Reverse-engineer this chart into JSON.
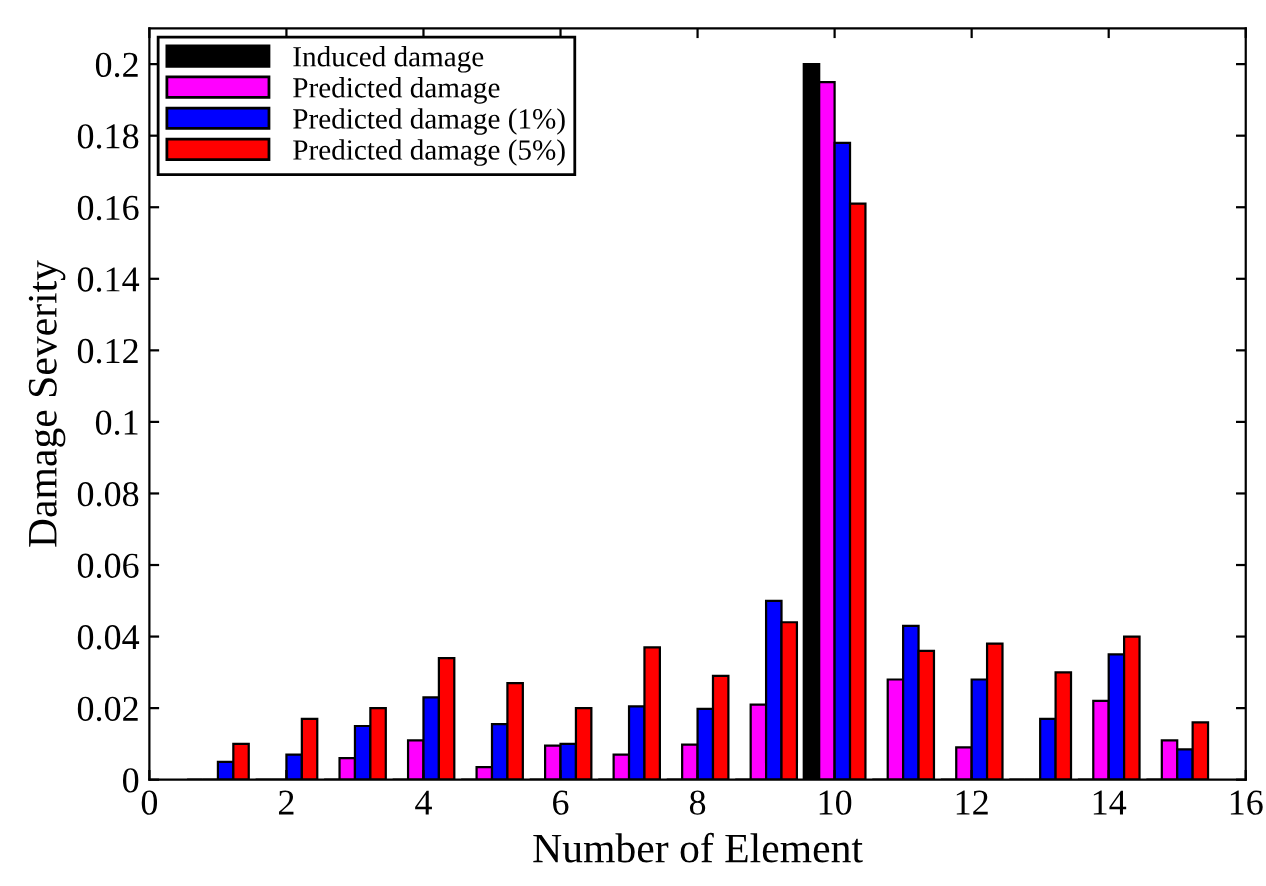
{
  "chart_data": {
    "type": "bar",
    "xlabel": "Number of Element",
    "ylabel": "Damage Severity",
    "x": [
      1,
      2,
      3,
      4,
      5,
      6,
      7,
      8,
      9,
      10,
      11,
      12,
      13,
      14,
      15
    ],
    "series": [
      {
        "name": "Induced damage",
        "color": "#000000",
        "values": [
          0,
          0,
          0,
          0,
          0,
          0,
          0,
          0,
          0,
          0.2,
          0,
          0,
          0,
          0,
          0
        ]
      },
      {
        "name": "Predicted damage",
        "color": "#ff00ff",
        "values": [
          0,
          0,
          0.006,
          0.011,
          0.0035,
          0.0095,
          0.007,
          0.0098,
          0.021,
          0.195,
          0.028,
          0.009,
          0,
          0.022,
          0.011
        ]
      },
      {
        "name": "Predicted damage (1%)",
        "color": "#0000ff",
        "values": [
          0.005,
          0.007,
          0.015,
          0.023,
          0.0155,
          0.01,
          0.0205,
          0.0198,
          0.05,
          0.178,
          0.043,
          0.028,
          0.017,
          0.035,
          0.0085
        ]
      },
      {
        "name": "Predicted damage (5%)",
        "color": "#ff0000",
        "values": [
          0.01,
          0.017,
          0.02,
          0.034,
          0.027,
          0.02,
          0.037,
          0.029,
          0.044,
          0.161,
          0.036,
          0.038,
          0.03,
          0.04,
          0.016
        ]
      }
    ],
    "xlim": [
      0,
      16
    ],
    "xticks": [
      0,
      2,
      4,
      6,
      8,
      10,
      12,
      14,
      16
    ],
    "ylim": [
      0,
      0.21
    ],
    "yticks": [
      0,
      0.02,
      0.04,
      0.06,
      0.08,
      0.1,
      0.12,
      0.14,
      0.16,
      0.18,
      0.2
    ],
    "legend": "top left",
    "grid": false
  }
}
